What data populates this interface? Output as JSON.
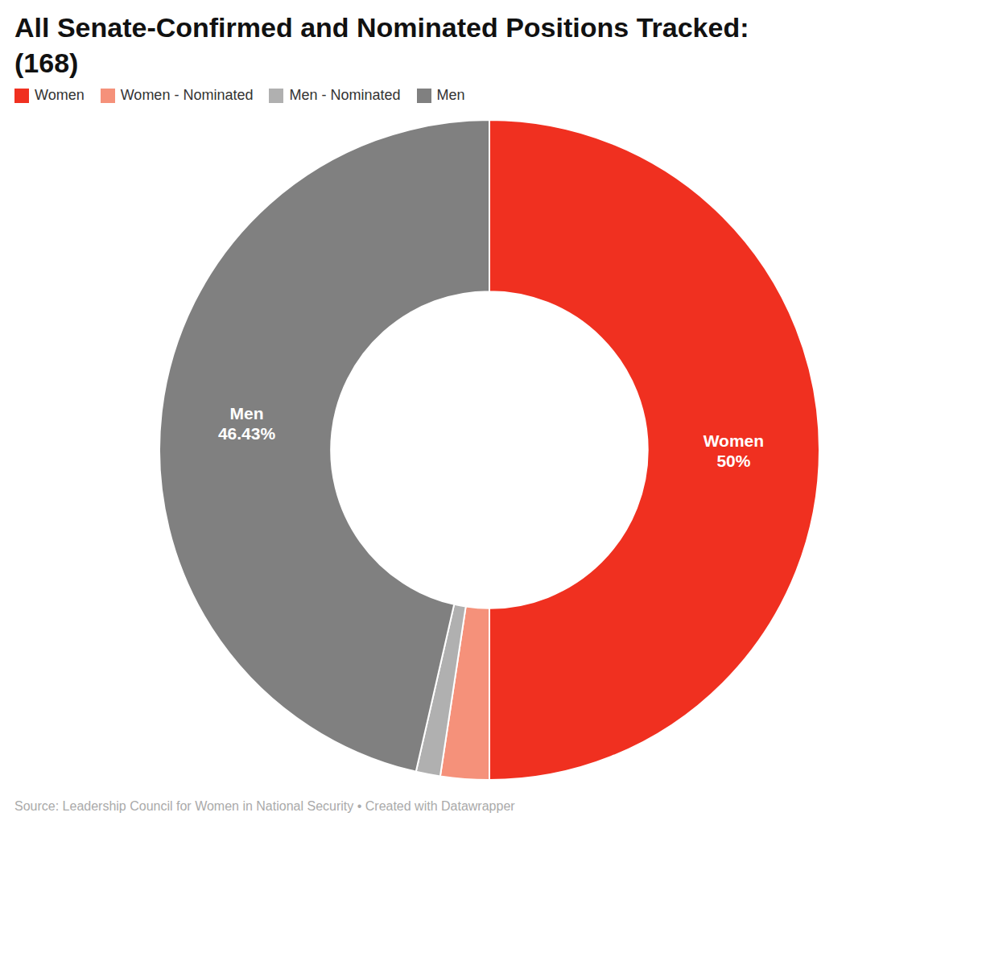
{
  "chart_data": {
    "type": "pie",
    "title": "All Senate-Confirmed and Nominated Positions Tracked:",
    "subtitle": "(168)",
    "categories": [
      "Women",
      "Women - Nominated",
      "Men - Nominated",
      "Men"
    ],
    "values": [
      50,
      2.380952380952381,
      1.1904761904761905,
      46.42857142857143
    ],
    "value_labels": [
      "50%",
      null,
      null,
      "46.43%"
    ],
    "data_labels": true,
    "colors": [
      "#f03020",
      "#f5917a",
      "#b0b0b0",
      "#808080"
    ],
    "legend": "upper left",
    "annotations": [
      "Source: Leadership Council for Women in National Security • Created with Datawrapper"
    ]
  }
}
